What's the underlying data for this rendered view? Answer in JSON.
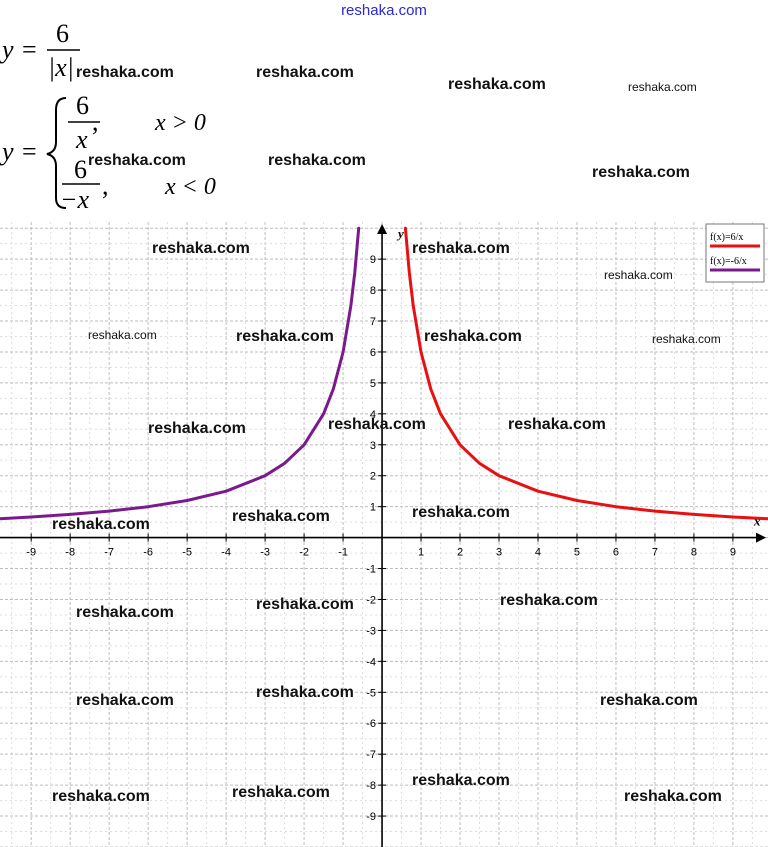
{
  "site_title": "reshaka.com",
  "formula": {
    "lhs": "y",
    "eq": "=",
    "num": "6",
    "den": "|x|",
    "case1_num": "6",
    "case1_den": "x",
    "case1_cond": "x > 0",
    "case2_num": "6",
    "case2_den": "−x",
    "case2_cond": "x < 0",
    "comma": ","
  },
  "watermarks": [
    "reshaka.com",
    "reshaka.com",
    "reshaka.com",
    "reshaka.com",
    "reshaka.com",
    "reshaka.com",
    "reshaka.com",
    "reshaka.com",
    "reshaka.com",
    "reshaka.com",
    "reshaka.com",
    "reshaka.com",
    "reshaka.com",
    "reshaka.com",
    "reshaka.com",
    "reshaka.com",
    "reshaka.com",
    "reshaka.com",
    "reshaka.com",
    "reshaka.com",
    "reshaka.com",
    "reshaka.com",
    "reshaka.com",
    "reshaka.com",
    "reshaka.com",
    "reshaka.com",
    "reshaka.com",
    "reshaka.com",
    "reshaka.com",
    "reshaka.com"
  ],
  "chart_data": {
    "type": "line",
    "xlabel": "x",
    "ylabel": "y",
    "xlim": [
      -9.8,
      9.9
    ],
    "ylim": [
      -10.0,
      10.2
    ],
    "x_ticks": [
      -9,
      -8,
      -7,
      -6,
      -5,
      -4,
      -3,
      -2,
      -1,
      1,
      2,
      3,
      4,
      5,
      6,
      7,
      8,
      9
    ],
    "y_ticks": [
      -9,
      -8,
      -7,
      -6,
      -5,
      -4,
      -3,
      -2,
      -1,
      1,
      2,
      3,
      4,
      5,
      6,
      7,
      8,
      9
    ],
    "grid": true,
    "legend_position": "top-right",
    "series": [
      {
        "name": "f(x)=6/x",
        "color": "#e81010",
        "x": [
          0.6,
          0.7,
          0.8,
          1,
          1.25,
          1.5,
          2,
          2.5,
          3,
          4,
          5,
          6,
          7,
          8,
          9,
          9.9
        ],
        "y": [
          10,
          8.57,
          7.5,
          6,
          4.8,
          4,
          3,
          2.4,
          2,
          1.5,
          1.2,
          1,
          0.857,
          0.75,
          0.667,
          0.606
        ]
      },
      {
        "name": "f(x)=-6/x",
        "color": "#7a1a8c",
        "x": [
          -9.8,
          -9,
          -8,
          -7,
          -6,
          -5,
          -4,
          -3,
          -2.5,
          -2,
          -1.5,
          -1.25,
          -1,
          -0.8,
          -0.7,
          -0.6
        ],
        "y": [
          0.612,
          0.667,
          0.75,
          0.857,
          1,
          1.2,
          1.5,
          2,
          2.4,
          3,
          4,
          4.8,
          6,
          7.5,
          8.57,
          10
        ]
      }
    ]
  }
}
